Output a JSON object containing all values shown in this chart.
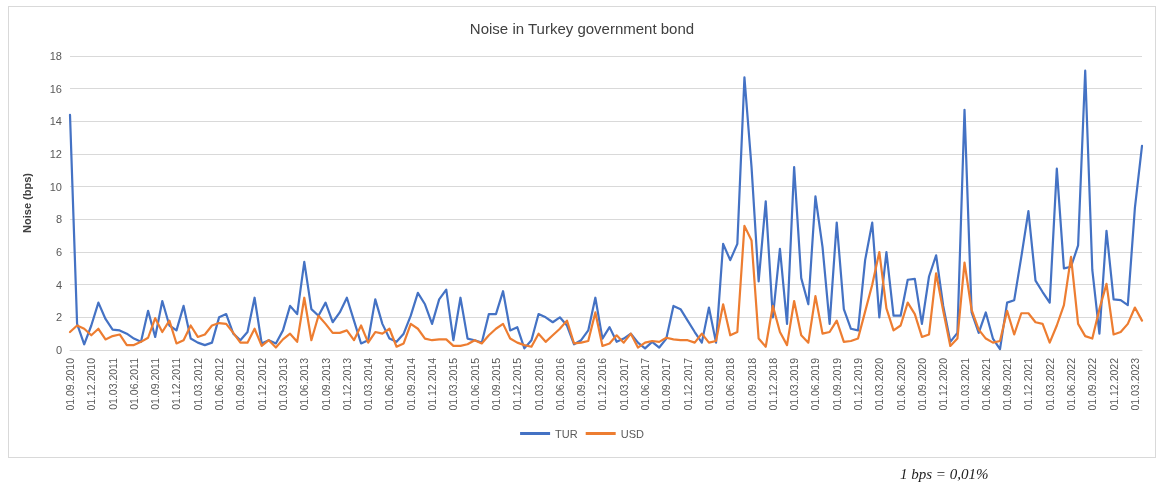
{
  "chart_data": {
    "type": "line",
    "title": "Noise in Turkey government bond",
    "ylabel": "Noise (bps)",
    "annotations": [
      "1 bps = 0,01%"
    ],
    "categories": [
      "01.09.2010",
      null,
      null,
      "01.12.2010",
      null,
      null,
      "01.03.2011",
      null,
      null,
      "01.06.2011",
      null,
      null,
      "01.09.2011",
      null,
      null,
      "01.12.2011",
      null,
      null,
      "01.03.2012",
      null,
      null,
      "01.06.2012",
      null,
      null,
      "01.09.2012",
      null,
      null,
      "01.12.2012",
      null,
      null,
      "01.03.2013",
      null,
      null,
      "01.06.2013",
      null,
      null,
      "01.09.2013",
      null,
      null,
      "01.12.2013",
      null,
      null,
      "01.03.2014",
      null,
      null,
      "01.06.2014",
      null,
      null,
      "01.09.2014",
      null,
      null,
      "01.12.2014",
      null,
      null,
      "01.03.2015",
      null,
      null,
      "01.06.2015",
      null,
      null,
      "01.09.2015",
      null,
      null,
      "01.12.2015",
      null,
      null,
      "01.03.2016",
      null,
      null,
      "01.06.2016",
      null,
      null,
      "01.09.2016",
      null,
      null,
      "01.12.2016",
      null,
      null,
      "01.03.2017",
      null,
      null,
      "01.06.2017",
      null,
      null,
      "01.09.2017",
      null,
      null,
      "01.12.2017",
      null,
      null,
      "01.03.2018",
      null,
      null,
      "01.06.2018",
      null,
      null,
      "01.09.2018",
      null,
      null,
      "01.12.2018",
      null,
      null,
      "01.03.2019",
      null,
      null,
      "01.06.2019",
      null,
      null,
      "01.09.2019",
      null,
      null,
      "01.12.2019",
      null,
      null,
      "01.03.2020",
      null,
      null,
      "01.06.2020",
      null,
      null,
      "01.09.2020",
      null,
      null,
      "01.12.2020",
      null,
      null,
      "01.03.2021",
      null,
      null,
      "01.06.2021",
      null,
      null,
      "01.09.2021",
      null,
      null,
      "01.12.2021",
      null,
      null,
      "01.03.2022",
      null,
      null,
      "01.06.2022",
      null,
      null,
      "01.09.2022",
      null,
      null,
      "01.12.2022",
      null,
      null,
      "01.03.2023",
      null
    ],
    "series": [
      {
        "name": "TUR",
        "color": "#4472c4",
        "values": [
          14.4,
          1.6,
          0.35,
          1.5,
          2.9,
          1.9,
          1.25,
          1.2,
          1.0,
          0.7,
          0.5,
          2.4,
          0.8,
          3.0,
          1.5,
          1.2,
          2.7,
          0.7,
          0.45,
          0.3,
          0.45,
          2.0,
          2.2,
          1.0,
          0.6,
          1.1,
          3.2,
          0.4,
          0.6,
          0.4,
          1.2,
          2.7,
          2.2,
          5.4,
          2.5,
          2.1,
          2.9,
          1.7,
          2.3,
          3.2,
          1.8,
          0.4,
          0.6,
          3.1,
          1.6,
          0.7,
          0.5,
          1.0,
          2.1,
          3.5,
          2.8,
          1.6,
          3.1,
          3.7,
          0.6,
          3.2,
          0.7,
          0.6,
          0.45,
          2.2,
          2.2,
          3.6,
          1.2,
          1.4,
          0.1,
          0.6,
          2.2,
          2.0,
          1.7,
          2.0,
          1.5,
          0.35,
          0.6,
          1.2,
          3.2,
          0.7,
          1.4,
          0.5,
          0.7,
          1.0,
          0.45,
          0.1,
          0.5,
          0.15,
          0.7,
          2.7,
          2.5,
          1.8,
          1.1,
          0.45,
          2.6,
          0.45,
          6.5,
          5.5,
          6.5,
          16.7,
          11.2,
          4.2,
          9.1,
          2.0,
          6.2,
          1.6,
          11.2,
          4.4,
          2.8,
          9.4,
          6.3,
          1.6,
          7.8,
          2.5,
          1.3,
          1.2,
          5.5,
          7.8,
          2.0,
          6.0,
          2.1,
          2.1,
          4.3,
          4.35,
          1.6,
          4.5,
          5.8,
          2.7,
          0.5,
          1.05,
          14.7,
          2.3,
          1.05,
          2.3,
          0.7,
          0.05,
          2.9,
          3.05,
          5.7,
          8.5,
          4.25,
          3.55,
          2.9,
          11.1,
          5.0,
          5.1,
          6.4,
          17.1,
          4.9,
          1.0,
          7.3,
          3.1,
          3.05,
          2.75,
          8.7,
          12.5
        ]
      },
      {
        "name": "USD",
        "color": "#ed7d31",
        "values": [
          1.1,
          1.5,
          1.3,
          0.9,
          1.3,
          0.65,
          0.85,
          0.95,
          0.3,
          0.3,
          0.5,
          0.75,
          1.95,
          1.1,
          1.8,
          0.4,
          0.6,
          1.5,
          0.8,
          0.95,
          1.5,
          1.65,
          1.6,
          1.05,
          0.45,
          0.45,
          1.3,
          0.25,
          0.6,
          0.15,
          0.65,
          1.0,
          0.5,
          3.2,
          0.6,
          2.1,
          1.6,
          1.05,
          1.05,
          1.2,
          0.6,
          1.5,
          0.45,
          1.1,
          1.0,
          1.3,
          0.2,
          0.4,
          1.6,
          1.3,
          0.7,
          0.6,
          0.65,
          0.65,
          0.25,
          0.25,
          0.35,
          0.6,
          0.4,
          0.9,
          1.3,
          1.6,
          0.7,
          0.45,
          0.3,
          0.2,
          1.0,
          0.5,
          0.9,
          1.3,
          1.8,
          0.4,
          0.45,
          0.55,
          2.3,
          0.25,
          0.4,
          0.9,
          0.45,
          1.0,
          0.15,
          0.45,
          0.55,
          0.5,
          0.75,
          0.65,
          0.6,
          0.6,
          0.45,
          1.0,
          0.45,
          0.55,
          2.8,
          0.9,
          1.1,
          7.6,
          6.7,
          0.7,
          0.2,
          2.7,
          1.1,
          0.3,
          3.0,
          0.9,
          0.45,
          3.3,
          1.0,
          1.1,
          1.8,
          0.5,
          0.55,
          0.7,
          2.35,
          4.0,
          6.0,
          2.55,
          1.2,
          1.5,
          2.9,
          2.2,
          0.8,
          0.95,
          4.7,
          2.4,
          0.25,
          0.7,
          5.35,
          2.45,
          1.25,
          0.7,
          0.45,
          0.55,
          2.4,
          0.95,
          2.25,
          2.25,
          1.7,
          1.6,
          0.45,
          1.5,
          2.75,
          5.7,
          1.6,
          0.85,
          0.7,
          2.5,
          4.05,
          0.95,
          1.1,
          1.6,
          2.6,
          1.8
        ]
      }
    ],
    "ylim": [
      0,
      18
    ],
    "yticks": [
      0,
      2,
      4,
      6,
      8,
      10,
      12,
      14,
      16,
      18
    ],
    "grid": "y",
    "legend": "bottom",
    "marker": "none",
    "line_style": "solid"
  }
}
